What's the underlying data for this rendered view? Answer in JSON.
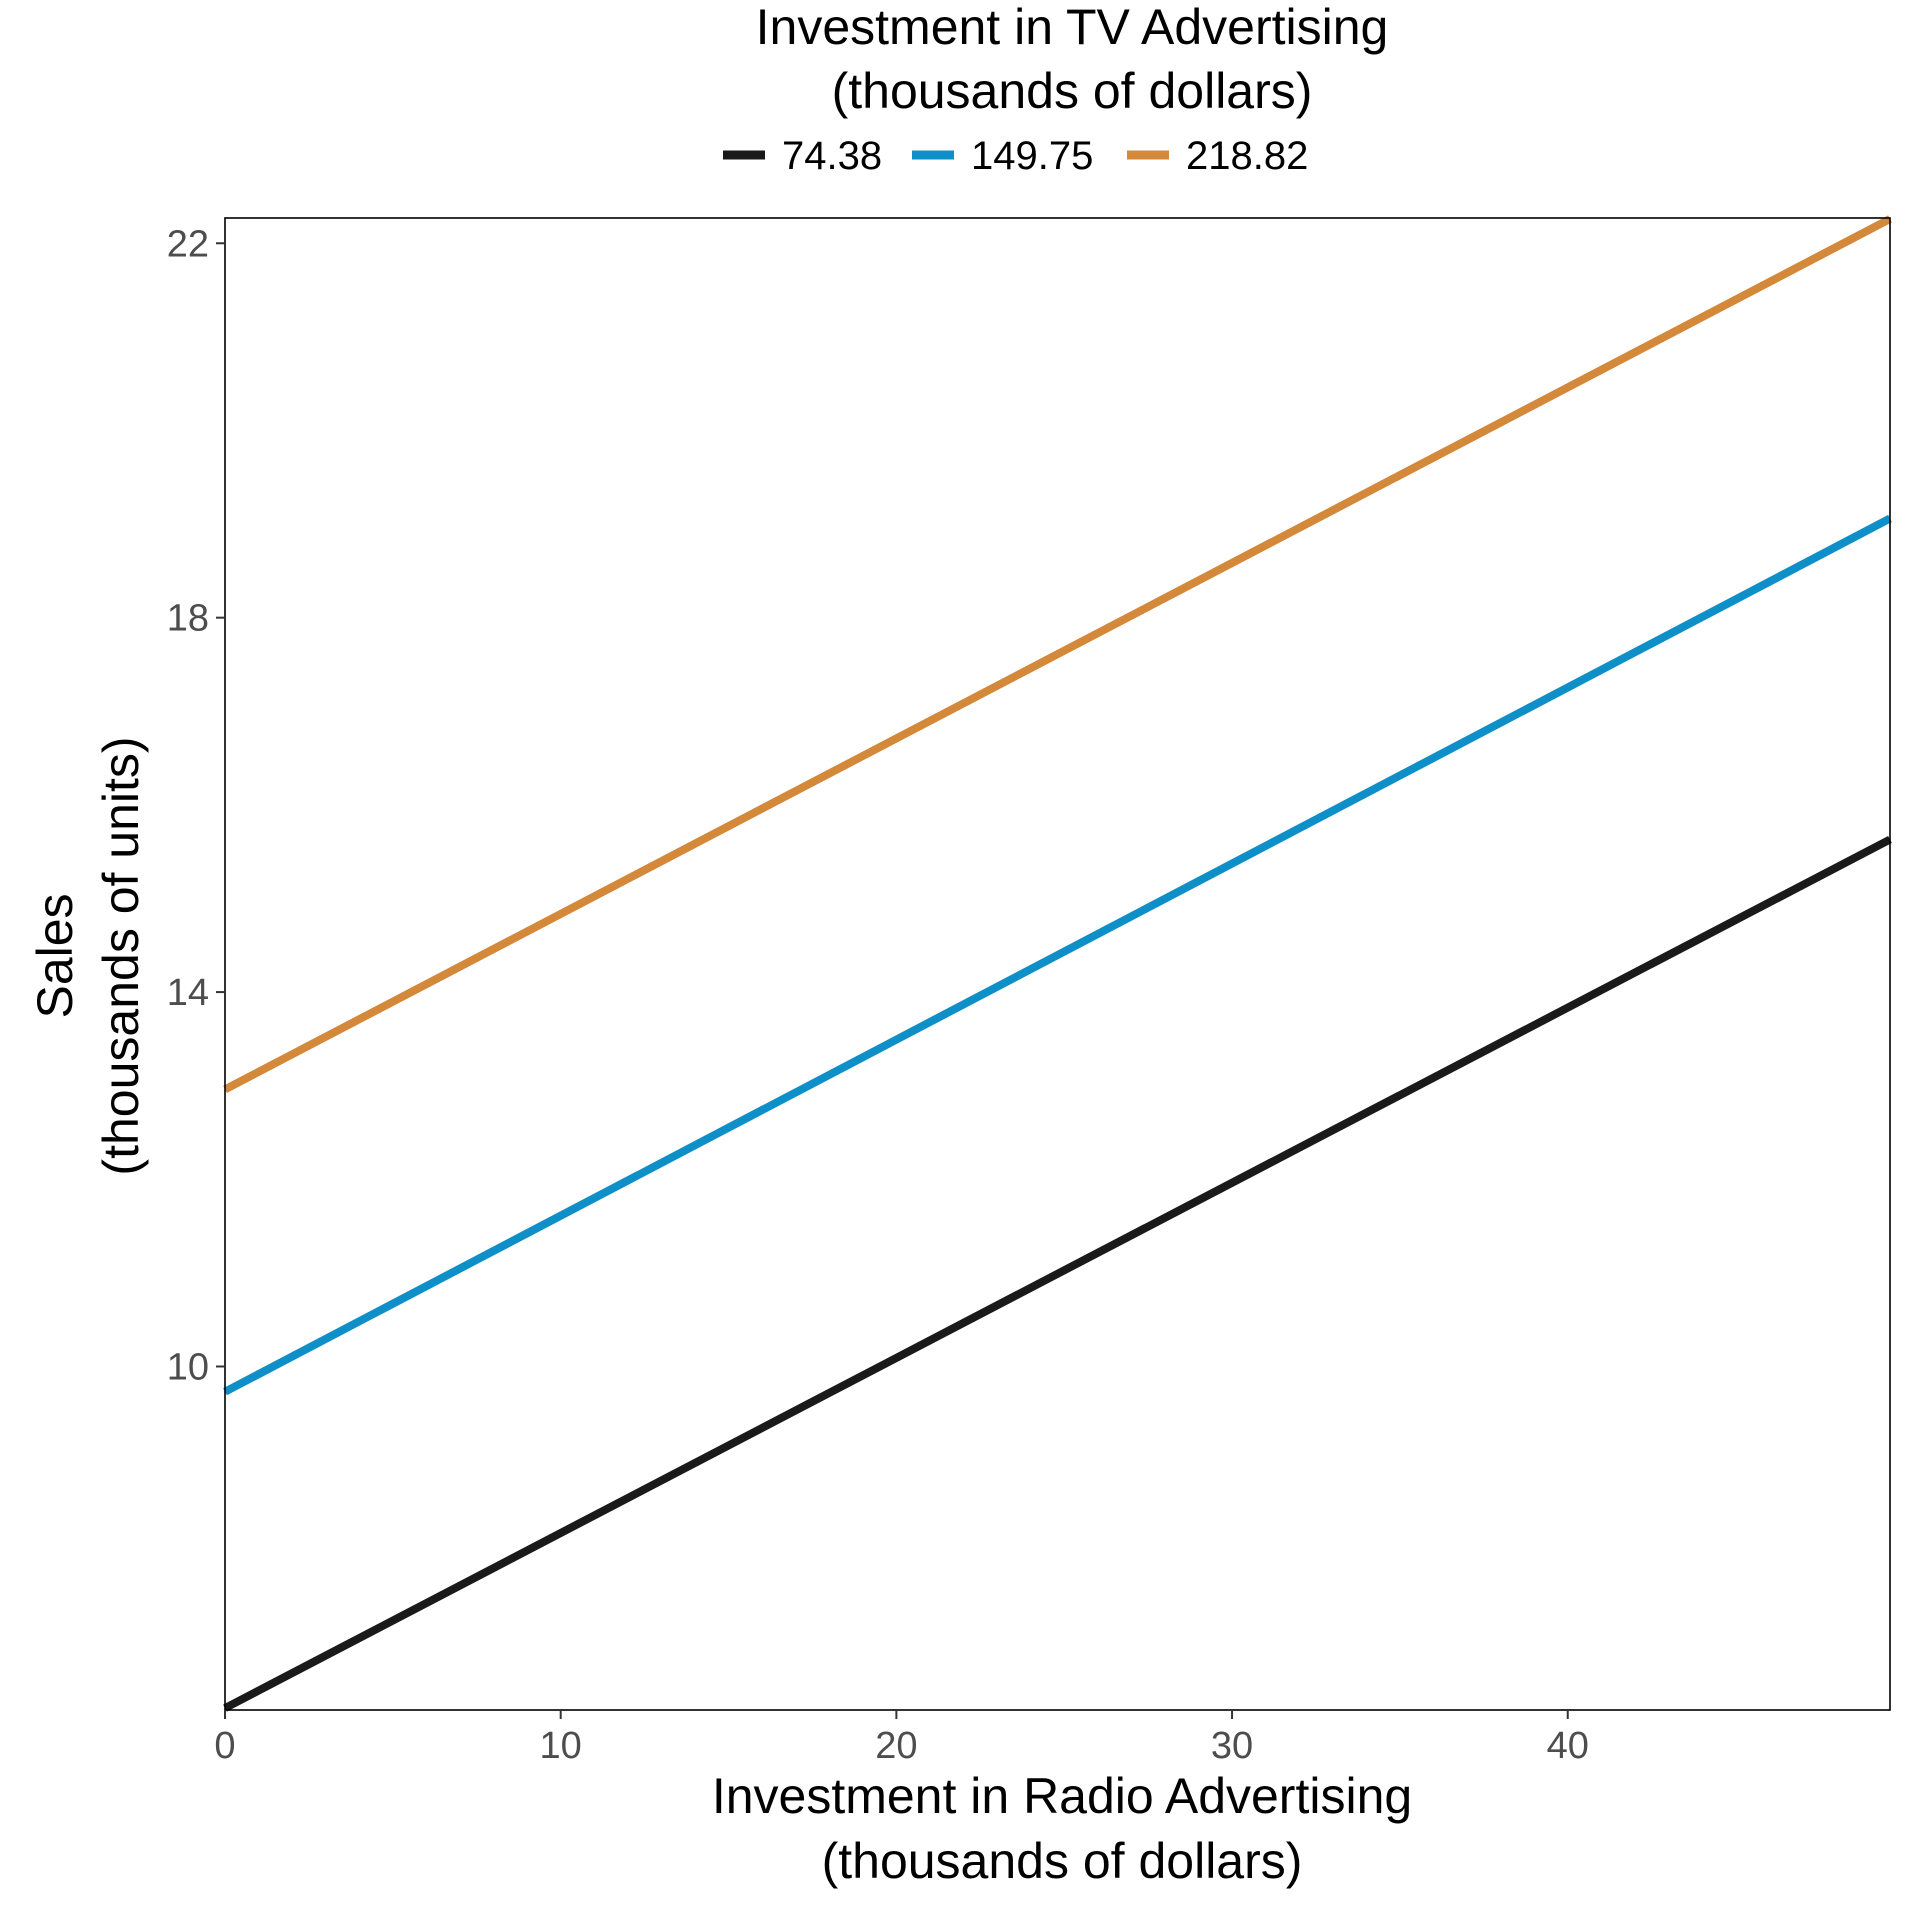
{
  "chart_data": {
    "type": "line",
    "legend": {
      "title_lines": [
        "Investment in TV Advertising",
        "(thousands of dollars)"
      ],
      "position": "top"
    },
    "xlabel_lines": [
      "Investment in Radio Advertising",
      "(thousands of dollars)"
    ],
    "ylabel_lines": [
      "Sales",
      "(thousands of units)"
    ],
    "xlim": [
      0,
      49.6
    ],
    "ylim": [
      6.33,
      22.27
    ],
    "xticks": [
      0,
      10,
      20,
      30,
      40
    ],
    "yticks": [
      10,
      14,
      18,
      22
    ],
    "grid": false,
    "x": [
      0,
      49.6
    ],
    "series": [
      {
        "name": "74.38",
        "color": "#1a1a1a",
        "values": [
          6.35,
          15.63
        ]
      },
      {
        "name": "149.75",
        "color": "#0f8fc7",
        "values": [
          9.73,
          19.06
        ]
      },
      {
        "name": "218.82",
        "color": "#d4883a",
        "values": [
          12.96,
          22.26
        ]
      }
    ]
  }
}
